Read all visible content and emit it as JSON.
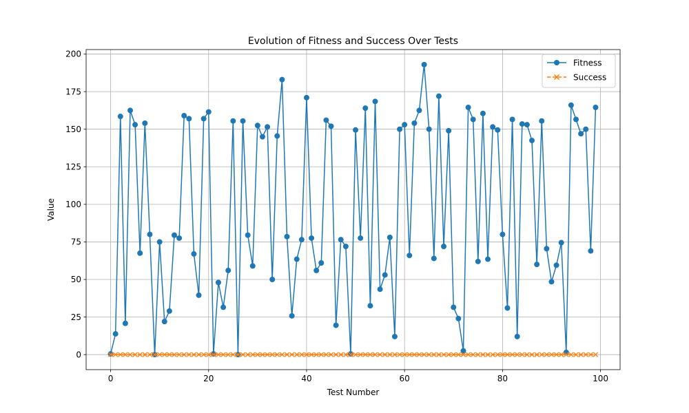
{
  "chart_data": {
    "type": "line",
    "title": "Evolution of Fitness and Success Over Tests",
    "xlabel": "Test Number",
    "ylabel": "Value",
    "xlim": [
      -5,
      104
    ],
    "ylim": [
      -10,
      203
    ],
    "xticks": [
      0,
      20,
      40,
      60,
      80,
      100
    ],
    "yticks": [
      0,
      25,
      50,
      75,
      100,
      125,
      150,
      175,
      200
    ],
    "grid": true,
    "legend_position": "top-right",
    "series": [
      {
        "name": "Fitness",
        "color": "#1f77b4",
        "marker": "circle",
        "linestyle": "solid",
        "x": [
          0,
          1,
          2,
          3,
          4,
          5,
          6,
          7,
          8,
          9,
          10,
          11,
          12,
          13,
          14,
          15,
          16,
          17,
          18,
          19,
          20,
          21,
          22,
          23,
          24,
          25,
          26,
          27,
          28,
          29,
          30,
          31,
          32,
          33,
          34,
          35,
          36,
          37,
          38,
          39,
          40,
          41,
          42,
          43,
          44,
          45,
          46,
          47,
          48,
          49,
          50,
          51,
          52,
          53,
          54,
          55,
          56,
          57,
          58,
          59,
          60,
          61,
          62,
          63,
          64,
          65,
          66,
          67,
          68,
          69,
          70,
          71,
          72,
          73,
          74,
          75,
          76,
          77,
          78,
          79,
          80,
          81,
          82,
          83,
          84,
          85,
          86,
          87,
          88,
          89,
          90,
          91,
          92,
          93,
          94,
          95,
          96,
          97,
          98,
          99
        ],
        "values": [
          0.5,
          13.8,
          158.5,
          20.8,
          162.5,
          153,
          67.5,
          154,
          80,
          0,
          75,
          22,
          29,
          79.5,
          77.5,
          159,
          157,
          67,
          39.5,
          157,
          161.5,
          0.5,
          48,
          31.5,
          56,
          155.5,
          0,
          155.5,
          79.5,
          59,
          152.5,
          145,
          151.5,
          50,
          145.5,
          183,
          78.5,
          25.8,
          63.5,
          76.5,
          171,
          77.5,
          56,
          61,
          156,
          152,
          19.5,
          76.5,
          72,
          0.5,
          149.5,
          77.5,
          164,
          32.5,
          168.5,
          43.5,
          53,
          78,
          12,
          150,
          153,
          66,
          154,
          162.5,
          193,
          150,
          64,
          172,
          72,
          149,
          31.5,
          24,
          2.5,
          164.5,
          156.5,
          62,
          160.5,
          63.5,
          151.5,
          149.5,
          80,
          31,
          156.5,
          12,
          153.5,
          153,
          142.5,
          60,
          155.5,
          70.5,
          48.5,
          59.5,
          74.5,
          1.5,
          166,
          156.5,
          147,
          150,
          69,
          164.5
        ]
      },
      {
        "name": "Success",
        "color": "#ff7f0e",
        "marker": "x",
        "linestyle": "dashed",
        "x": [
          0,
          1,
          2,
          3,
          4,
          5,
          6,
          7,
          8,
          9,
          10,
          11,
          12,
          13,
          14,
          15,
          16,
          17,
          18,
          19,
          20,
          21,
          22,
          23,
          24,
          25,
          26,
          27,
          28,
          29,
          30,
          31,
          32,
          33,
          34,
          35,
          36,
          37,
          38,
          39,
          40,
          41,
          42,
          43,
          44,
          45,
          46,
          47,
          48,
          49,
          50,
          51,
          52,
          53,
          54,
          55,
          56,
          57,
          58,
          59,
          60,
          61,
          62,
          63,
          64,
          65,
          66,
          67,
          68,
          69,
          70,
          71,
          72,
          73,
          74,
          75,
          76,
          77,
          78,
          79,
          80,
          81,
          82,
          83,
          84,
          85,
          86,
          87,
          88,
          89,
          90,
          91,
          92,
          93,
          94,
          95,
          96,
          97,
          98,
          99
        ],
        "values": [
          0,
          0,
          0,
          0,
          0,
          0,
          0,
          0,
          0,
          0,
          0,
          0,
          0,
          0,
          0,
          0,
          0,
          0,
          0,
          0,
          0,
          0,
          0,
          0,
          0,
          0,
          0,
          0,
          0,
          0,
          0,
          0,
          0,
          0,
          0,
          0,
          0,
          0,
          0,
          0,
          0,
          0,
          0,
          0,
          0,
          0,
          0,
          0,
          0,
          0,
          0,
          0,
          0,
          0,
          0,
          0,
          0,
          0,
          0,
          0,
          0,
          0,
          0,
          0,
          0,
          0,
          0,
          0,
          0,
          0,
          0,
          0,
          0,
          0,
          0,
          0,
          0,
          0,
          0,
          0,
          0,
          0,
          0,
          0,
          0,
          0,
          0,
          0,
          0,
          0,
          0,
          0,
          0,
          0,
          0,
          0,
          0,
          0,
          0,
          0
        ]
      }
    ]
  }
}
